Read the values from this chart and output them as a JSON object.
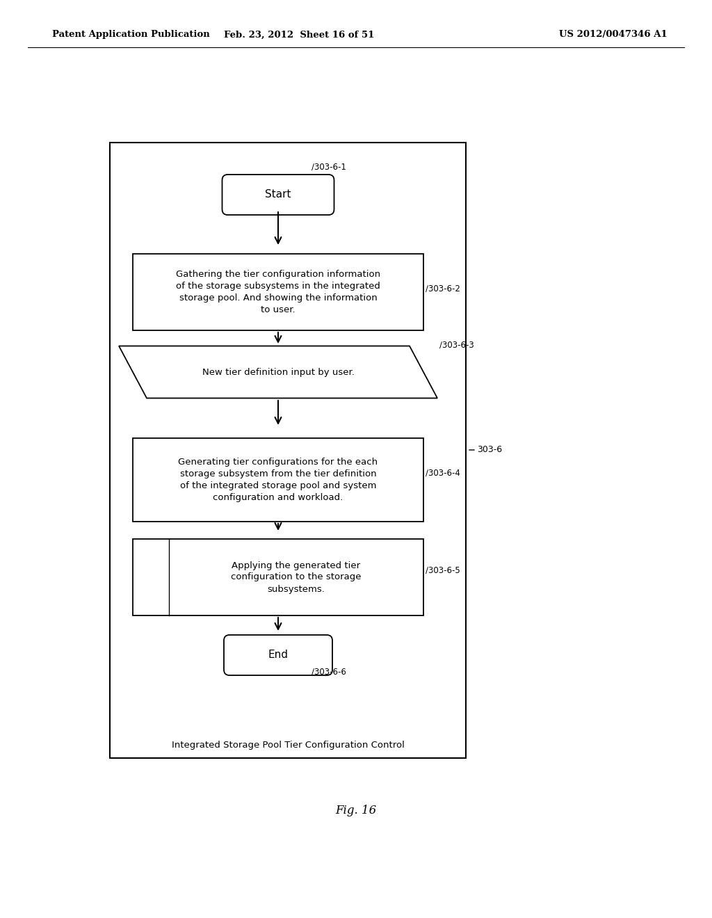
{
  "header_left": "Patent Application Publication",
  "header_mid": "Feb. 23, 2012  Sheet 16 of 51",
  "header_right": "US 2012/0047346 A1",
  "fig_label": "Fig. 16",
  "diagram_title": "Integrated Storage Pool Tier Configuration Control",
  "outer_box_label": "303-6",
  "start_label": "Start",
  "start_ref": "303-6-1",
  "end_label": "End",
  "end_ref": "303-6-6",
  "step2_text": "Gathering the tier configuration information\nof the storage subsystems in the integrated\nstorage pool. And showing the information\nto user.",
  "step2_ref": "303-6-2",
  "step3_text": "New tier definition input by user.",
  "step3_ref": "303-6-3",
  "step4_text": "Generating tier configurations for the each\nstorage subsystem from the tier definition\nof the integrated storage pool and system\nconfiguration and workload.",
  "step4_ref": "303-6-4",
  "step5_text": "Applying the generated tier\nconfiguration to the storage\nsubsystems.",
  "step5_ref": "303-6-5",
  "bg_color": "#ffffff",
  "line_color": "#000000"
}
